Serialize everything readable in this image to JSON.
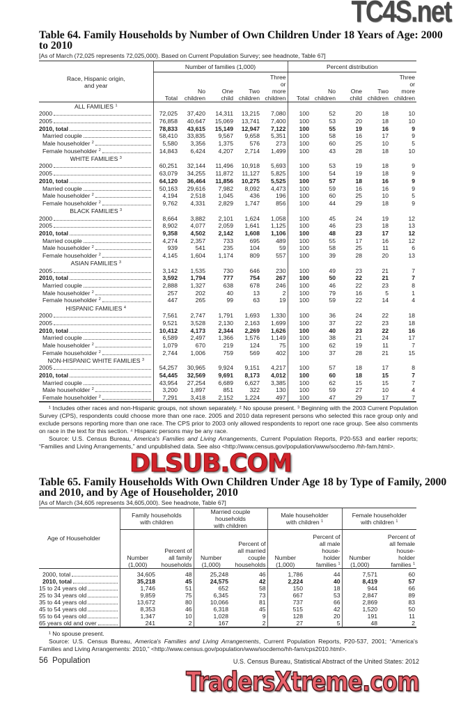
{
  "watermarks": {
    "top": "TC4S.net",
    "middle": "DLSUB.COM",
    "bottom": "TradersXtreme.com"
  },
  "table64": {
    "title": "Table 64. Family Households by Number of Own Children Under 18 Years of Age: 2000 to 2010",
    "headnote": "[As of March (72,025 represents 72,025,000). Based on Current Population Survey; see headnote, Table 67]",
    "stub_header": "Race, Hispanic origin,\nand year",
    "group_headers": [
      "Number of families (1,000)",
      "Percent distribution"
    ],
    "column_headers": [
      "Total",
      "No\nchildren",
      "One\nchild",
      "Two\nchildren",
      "Three\nor\nmore\nchildren",
      "Total",
      "No\nchildren",
      "One\nchild",
      "Two\nchildren",
      "Three\nor\nmore\nchildren"
    ],
    "groups": [
      {
        "label": "ALL FAMILIES",
        "note": "1",
        "rows": [
          {
            "label": "2000",
            "values": [
              "72,025",
              "37,420",
              "14,311",
              "13,215",
              "7,080",
              "100",
              "52",
              "20",
              "18",
              "10"
            ]
          },
          {
            "label": "2005",
            "values": [
              "76,858",
              "40,647",
              "15,069",
              "13,741",
              "7,400",
              "100",
              "53",
              "20",
              "18",
              "10"
            ]
          },
          {
            "label": "2010, total",
            "bold": true,
            "values": [
              "78,833",
              "43,615",
              "15,149",
              "12,947",
              "7,122",
              "100",
              "55",
              "19",
              "16",
              "9"
            ]
          },
          {
            "label": "Married couple",
            "indent": true,
            "values": [
              "58,410",
              "33,835",
              "9,567",
              "9,658",
              "5,351",
              "100",
              "58",
              "16",
              "17",
              "9"
            ]
          },
          {
            "label": "Male householder",
            "note": "2",
            "indent": true,
            "values": [
              "5,580",
              "3,356",
              "1,375",
              "576",
              "273",
              "100",
              "60",
              "25",
              "10",
              "5"
            ]
          },
          {
            "label": "Female householder",
            "note": "2",
            "indent": true,
            "values": [
              "14,843",
              "6,424",
              "4,207",
              "2,714",
              "1,499",
              "100",
              "43",
              "28",
              "18",
              "10"
            ]
          }
        ]
      },
      {
        "label": "WHITE FAMILIES",
        "note": "3",
        "rows": [
          {
            "label": "2000",
            "values": [
              "60,251",
              "32,144",
              "11,496",
              "10,918",
              "5,693",
              "100",
              "53",
              "19",
              "18",
              "9"
            ]
          },
          {
            "label": "2005",
            "values": [
              "63,079",
              "34,255",
              "11,872",
              "11,127",
              "5,825",
              "100",
              "54",
              "19",
              "18",
              "9"
            ]
          },
          {
            "label": "2010, total",
            "bold": true,
            "values": [
              "64,120",
              "36,464",
              "11,856",
              "10,275",
              "5,525",
              "100",
              "57",
              "18",
              "16",
              "9"
            ]
          },
          {
            "label": "Married couple",
            "indent": true,
            "values": [
              "50,163",
              "29,616",
              "7,982",
              "8,092",
              "4,473",
              "100",
              "59",
              "16",
              "16",
              "9"
            ]
          },
          {
            "label": "Male householder",
            "note": "2",
            "indent": true,
            "values": [
              "4,194",
              "2,518",
              "1,045",
              "436",
              "196",
              "100",
              "60",
              "25",
              "10",
              "5"
            ]
          },
          {
            "label": "Female householder",
            "note": "2",
            "indent": true,
            "values": [
              "9,762",
              "4,331",
              "2,829",
              "1,747",
              "856",
              "100",
              "44",
              "29",
              "18",
              "9"
            ]
          }
        ]
      },
      {
        "label": "BLACK FAMILIES",
        "note": "3",
        "rows": [
          {
            "label": "2000",
            "values": [
              "8,664",
              "3,882",
              "2,101",
              "1,624",
              "1,058",
              "100",
              "45",
              "24",
              "19",
              "12"
            ]
          },
          {
            "label": "2005",
            "values": [
              "8,902",
              "4,077",
              "2,059",
              "1,641",
              "1,125",
              "100",
              "46",
              "23",
              "18",
              "13"
            ]
          },
          {
            "label": "2010, total",
            "bold": true,
            "values": [
              "9,358",
              "4,502",
              "2,142",
              "1,608",
              "1,106",
              "100",
              "48",
              "23",
              "17",
              "12"
            ]
          },
          {
            "label": "Married couple",
            "indent": true,
            "values": [
              "4,274",
              "2,357",
              "733",
              "695",
              "489",
              "100",
              "55",
              "17",
              "16",
              "12"
            ]
          },
          {
            "label": "Male householder",
            "note": "2",
            "indent": true,
            "values": [
              "939",
              "541",
              "235",
              "104",
              "59",
              "100",
              "58",
              "25",
              "11",
              "6"
            ]
          },
          {
            "label": "Female householder",
            "note": "2",
            "indent": true,
            "values": [
              "4,145",
              "1,604",
              "1,174",
              "809",
              "557",
              "100",
              "39",
              "28",
              "20",
              "13"
            ]
          }
        ]
      },
      {
        "label": "ASIAN FAMILIES",
        "note": "3",
        "rows": [
          {
            "label": "2005",
            "values": [
              "3,142",
              "1,535",
              "730",
              "646",
              "230",
              "100",
              "49",
              "23",
              "21",
              "7"
            ]
          },
          {
            "label": "2010, total",
            "bold": true,
            "values": [
              "3,592",
              "1,794",
              "777",
              "754",
              "267",
              "100",
              "50",
              "22",
              "21",
              "7"
            ]
          },
          {
            "label": "Married couple",
            "indent": true,
            "values": [
              "2,888",
              "1,327",
              "638",
              "678",
              "246",
              "100",
              "46",
              "22",
              "23",
              "8"
            ]
          },
          {
            "label": "Male householder",
            "note": "2",
            "indent": true,
            "values": [
              "257",
              "202",
              "40",
              "13",
              "2",
              "100",
              "79",
              "16",
              "5",
              "1"
            ]
          },
          {
            "label": "Female householder",
            "note": "2",
            "indent": true,
            "values": [
              "447",
              "265",
              "99",
              "63",
              "19",
              "100",
              "59",
              "22",
              "14",
              "4"
            ]
          }
        ]
      },
      {
        "label": "HISPANIC FAMILIES",
        "note": "4",
        "rows": [
          {
            "label": "2000",
            "values": [
              "7,561",
              "2,747",
              "1,791",
              "1,693",
              "1,330",
              "100",
              "36",
              "24",
              "22",
              "18"
            ]
          },
          {
            "label": "2005",
            "values": [
              "9,521",
              "3,528",
              "2,130",
              "2,163",
              "1,699",
              "100",
              "37",
              "22",
              "23",
              "18"
            ]
          },
          {
            "label": "2010, total",
            "bold": true,
            "values": [
              "10,412",
              "4,173",
              "2,344",
              "2,269",
              "1,626",
              "100",
              "40",
              "23",
              "22",
              "16"
            ]
          },
          {
            "label": "Married couple",
            "indent": true,
            "values": [
              "6,589",
              "2,497",
              "1,366",
              "1,576",
              "1,149",
              "100",
              "38",
              "21",
              "24",
              "17"
            ]
          },
          {
            "label": "Male householder",
            "note": "2",
            "indent": true,
            "values": [
              "1,079",
              "670",
              "219",
              "124",
              "75",
              "100",
              "62",
              "19",
              "11",
              "7"
            ]
          },
          {
            "label": "Female householder",
            "note": "2",
            "indent": true,
            "values": [
              "2,744",
              "1,006",
              "759",
              "569",
              "402",
              "100",
              "37",
              "28",
              "21",
              "15"
            ]
          }
        ]
      },
      {
        "label": "NON-HISPANIC WHITE FAMILIES",
        "note": "3",
        "rows": [
          {
            "label": "2005",
            "values": [
              "54,257",
              "30,965",
              "9,924",
              "9,151",
              "4,217",
              "100",
              "57",
              "18",
              "17",
              "8"
            ]
          },
          {
            "label": "2010, total",
            "bold": true,
            "values": [
              "54,445",
              "32,569",
              "9,691",
              "8,173",
              "4,012",
              "100",
              "60",
              "18",
              "15",
              "7"
            ]
          },
          {
            "label": "Married couple",
            "indent": true,
            "values": [
              "43,954",
              "27,254",
              "6,689",
              "6,627",
              "3,385",
              "100",
              "62",
              "15",
              "15",
              "7"
            ]
          },
          {
            "label": "Male householder",
            "note": "2",
            "indent": true,
            "values": [
              "3,200",
              "1,897",
              "851",
              "322",
              "130",
              "100",
              "59",
              "27",
              "10",
              "4"
            ]
          },
          {
            "label": "Female householder",
            "note": "2",
            "indent": true,
            "values": [
              "7,291",
              "3,418",
              "2,152",
              "1,224",
              "497",
              "100",
              "47",
              "29",
              "17",
              "7"
            ]
          }
        ]
      }
    ],
    "footnotes": "¹ Includes other races and non-Hispanic groups, not shown separately. ² No spouse present. ³ Beginning with the 2003 Current Population Survey (CPS), respondents could choose more than one race. 2005 and 2010 data represent persons who selected this race group only and exclude persons reporting more than one race. The CPS prior to 2003 only allowed respondents to report one race group. See also comments on race in the text for this section. ⁴ Hispanic persons may be any race.",
    "source_prefix": "Source: U.S. Census Bureau, ",
    "source_title": "America's Families and Living Arrangements",
    "source_suffix": ", Current Population Reports, P20-553 and earlier reports; “Families and Living Arrangements,” and unpublished data. See also <http://www.census.gov/population/www/socdemo /hh-fam.html>."
  },
  "table65": {
    "title": "Table 65. Family Households With Own Children Under Age 18 by Type of Family, 2000 and 2010, and by Age of Householder, 2010",
    "headnote": "[As of March (34,605 represents 34,605,000). See headnote, Table 67]",
    "stub_header": "Age of Householder",
    "group_headers": [
      {
        "label": "Family households\nwith children"
      },
      {
        "label": "Married couple\nhouseholds\nwith children"
      },
      {
        "label": "Male householder\nwith children",
        "note": "1"
      },
      {
        "label": "Female householder\nwith children",
        "note": "1"
      }
    ],
    "column_headers": [
      {
        "label": "Number\n(1,000)"
      },
      {
        "label": "Percent of\nall family\nhouseholds"
      },
      {
        "label": "Number\n(1,000)"
      },
      {
        "label": "Percent of\nall married\ncouple\nhouseholds"
      },
      {
        "label": "Number\n(1,000)"
      },
      {
        "label": "Percent of\nall male\nhouse-\nholder\nfamilies",
        "note": "1"
      },
      {
        "label": "Number\n(1,000)"
      },
      {
        "label": "Percent of\nall female\nhouse-\nholder\nfamilies",
        "note": "1"
      }
    ],
    "rows": [
      {
        "label": "2000, total",
        "values": [
          "34,605",
          "48",
          "25,248",
          "46",
          "1,786",
          "44",
          "7,571",
          "60"
        ]
      },
      {
        "label": "2010, total",
        "bold": true,
        "values": [
          "35,218",
          "45",
          "24,575",
          "42",
          "2,224",
          "40",
          "8,419",
          "57"
        ]
      },
      {
        "label": "15 to 24 years old",
        "values": [
          "1,746",
          "51",
          "652",
          "58",
          "150",
          "18",
          "944",
          "66"
        ]
      },
      {
        "label": "25 to 34 years old",
        "values": [
          "9,859",
          "75",
          "6,345",
          "73",
          "667",
          "53",
          "2,847",
          "89"
        ]
      },
      {
        "label": "35 to 44 years old",
        "values": [
          "13,672",
          "80",
          "10,066",
          "81",
          "737",
          "66",
          "2,869",
          "83"
        ]
      },
      {
        "label": "45 to 54 years old",
        "values": [
          "8,353",
          "46",
          "6,318",
          "45",
          "515",
          "42",
          "1,520",
          "50"
        ]
      },
      {
        "label": "55 to 64 years old",
        "values": [
          "1,347",
          "10",
          "1,028",
          "9",
          "128",
          "20",
          "191",
          "11"
        ]
      },
      {
        "label": "65 years old and over",
        "values": [
          "241",
          "2",
          "167",
          "2",
          "27",
          "5",
          "48",
          "2"
        ]
      }
    ],
    "footnote": "¹ No spouse present.",
    "source_prefix": "Source: U.S. Census Bureau, ",
    "source_title": "America's Families and Living Arrangements",
    "source_suffix": ", Current Population Reports, P20-537, 2001; “America's Families and Living Arrangements: 2010,” <http://www.census.gov/population/www/socdemo/hh-fam/cps2010.html>."
  },
  "page_footer": {
    "page_label": "56  Population",
    "publication": "U.S. Census Bureau, Statistical Abstract of the United States: 2012"
  }
}
